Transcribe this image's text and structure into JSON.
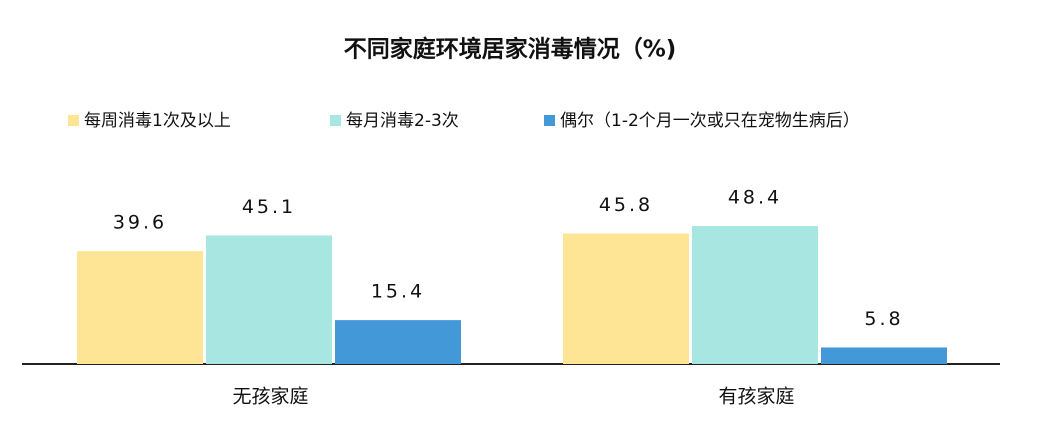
{
  "chart_data": {
    "type": "bar",
    "title": "不同家庭环境居家消毒情况（%)",
    "categories": [
      "无孩家庭",
      "有孩家庭"
    ],
    "series": [
      {
        "name": "每周消毒1次及以上",
        "color": "#fde595",
        "values": [
          39.6,
          45.8
        ]
      },
      {
        "name": "每月消毒2-3次",
        "color": "#a8e7e1",
        "values": [
          45.1,
          48.4
        ]
      },
      {
        "name": "偶尔（1-2个月一次或只在宠物生病后）",
        "color": "#4398d8",
        "values": [
          15.4,
          5.8
        ]
      }
    ],
    "grid": false
  }
}
